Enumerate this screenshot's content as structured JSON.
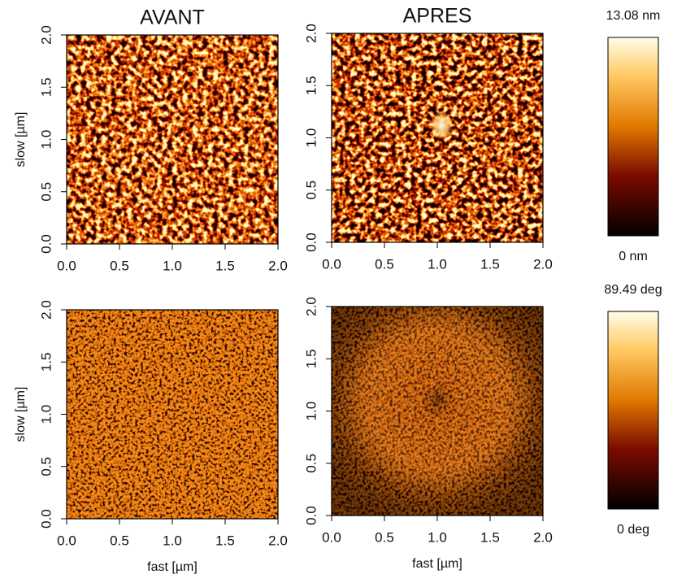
{
  "chart_data": [
    {
      "type": "image",
      "title": "AVANT",
      "ylabel": "slow [µm]",
      "xlim": [
        0,
        2
      ],
      "ylim": [
        0,
        2
      ],
      "xticks": [
        {
          "value": 0,
          "label": "0.0"
        },
        0.5,
        {
          "value": 1,
          "label": "1.0"
        },
        1.5,
        {
          "value": 2,
          "label": "2.0"
        }
      ],
      "yticks": [
        {
          "value": 0,
          "label": "0.0"
        },
        0.5,
        {
          "value": 1,
          "label": "1.0"
        },
        1.5,
        {
          "value": 2,
          "label": "2.0"
        }
      ]
    },
    {
      "type": "image",
      "title": "APRES",
      "xlim": [
        0,
        2
      ],
      "ylim": [
        0,
        2
      ],
      "xticks": [
        {
          "value": 0,
          "label": "0.0"
        },
        0.5,
        {
          "value": 1,
          "label": "1.0"
        },
        1.5,
        {
          "value": 2,
          "label": "2.0"
        }
      ],
      "yticks": [
        {
          "value": 0,
          "label": "0.0"
        },
        0.5,
        {
          "value": 1,
          "label": "1.0"
        },
        1.5,
        {
          "value": 2,
          "label": "2.0"
        }
      ]
    },
    {
      "type": "image",
      "ylabel": "slow [µm]",
      "xlabel": "fast [µm]",
      "xlim": [
        0,
        2
      ],
      "ylim": [
        0,
        2
      ],
      "xticks": [
        {
          "value": 0,
          "label": "0.0"
        },
        0.5,
        {
          "value": 1,
          "label": "1.0"
        },
        1.5,
        {
          "value": 2,
          "label": "2.0"
        }
      ],
      "yticks": [
        {
          "value": 0,
          "label": "0.0"
        },
        0.5,
        {
          "value": 1,
          "label": "1.0"
        },
        1.5,
        {
          "value": 2,
          "label": "2.0"
        }
      ]
    },
    {
      "type": "image",
      "xlabel": "fast [µm]",
      "xlim": [
        0,
        2
      ],
      "ylim": [
        0,
        2
      ],
      "xticks": [
        {
          "value": 0,
          "label": "0.0"
        },
        0.5,
        {
          "value": 1,
          "label": "1.0"
        },
        1.5,
        {
          "value": 2,
          "label": "2.0"
        }
      ],
      "yticks": [
        {
          "value": 0,
          "label": "0.0"
        },
        0.5,
        {
          "value": 1,
          "label": "1.0"
        },
        1.5,
        {
          "value": 2,
          "label": "2.0"
        }
      ]
    },
    {
      "type": "colorbar",
      "max_label": "13.08 nm",
      "min_label": "0 nm"
    },
    {
      "type": "colorbar",
      "max_label": "89.49 deg",
      "min_label": "0 deg"
    }
  ]
}
